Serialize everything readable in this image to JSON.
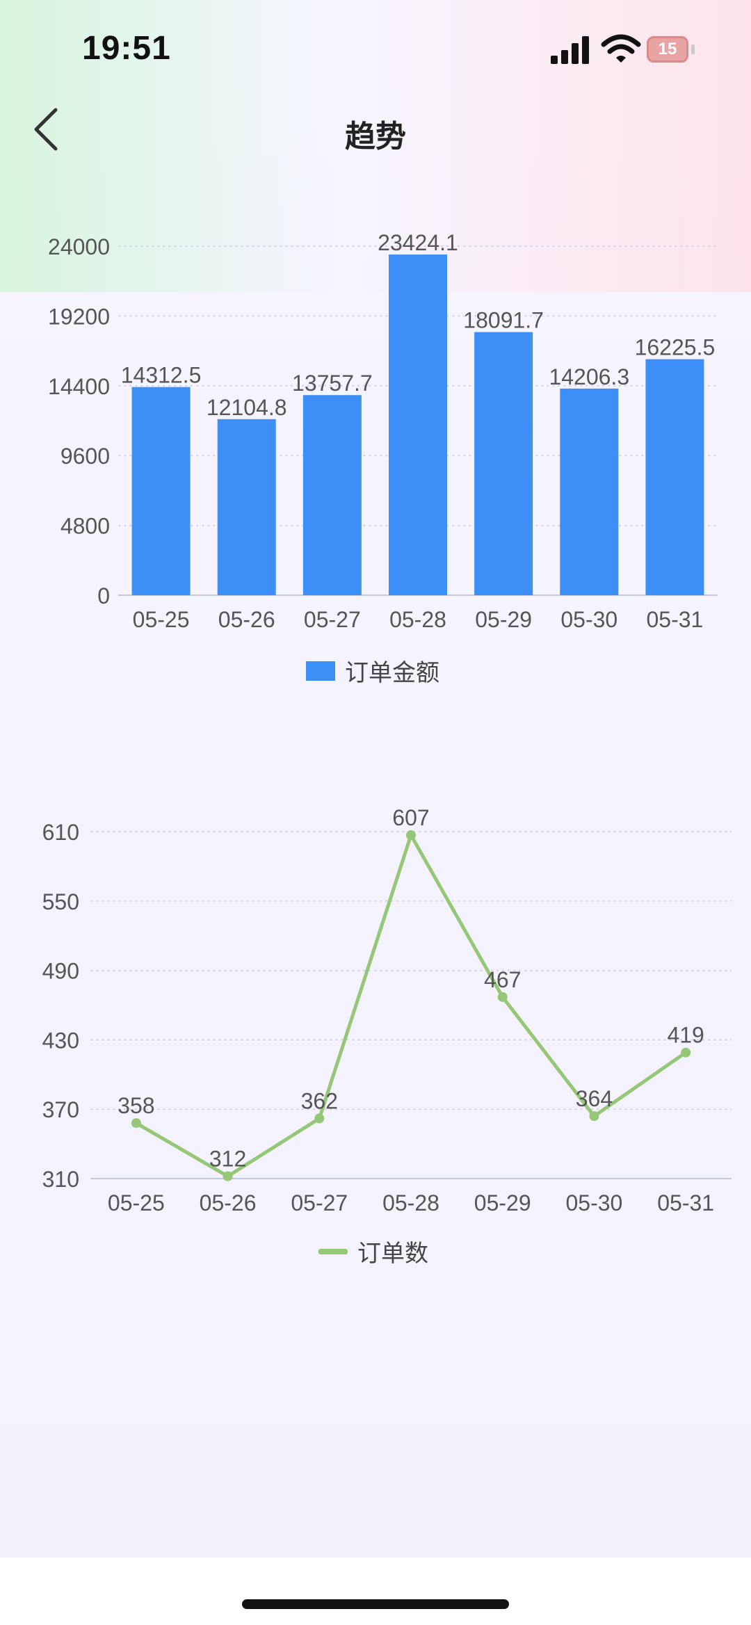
{
  "status_bar": {
    "time": "19:51",
    "battery": "15",
    "battery_color": "#e8a3a3"
  },
  "header": {
    "title": "趋势"
  },
  "icons": [
    "back-arrow-icon",
    "signal-icon",
    "wifi-icon",
    "battery-icon"
  ],
  "colors": {
    "bar": "#3d8ef6",
    "line": "#95c777",
    "grid": "#cfd4e6",
    "axis_text": "#555555",
    "label_text": "#555555"
  },
  "chart_data": [
    {
      "type": "bar",
      "categories": [
        "05-25",
        "05-26",
        "05-27",
        "05-28",
        "05-29",
        "05-30",
        "05-31"
      ],
      "series": [
        {
          "name": "订单金额",
          "values": [
            14312.5,
            12104.8,
            13757.7,
            23424.1,
            18091.7,
            14206.3,
            16225.5
          ]
        }
      ],
      "ylim": [
        0,
        24000
      ],
      "yticks": [
        0,
        4800,
        9600,
        14400,
        19200,
        24000
      ],
      "grid": true,
      "legend": "bottom-center",
      "data_labels": [
        "14312.5",
        "12104.8",
        "13757.7",
        "23424.1",
        "18091.7",
        "14206.3",
        "16225.5"
      ]
    },
    {
      "type": "line",
      "categories": [
        "05-25",
        "05-26",
        "05-27",
        "05-28",
        "05-29",
        "05-30",
        "05-31"
      ],
      "series": [
        {
          "name": "订单数",
          "values": [
            358,
            312,
            362,
            607,
            467,
            364,
            419
          ]
        }
      ],
      "ylim": [
        310,
        610
      ],
      "yticks": [
        310,
        370,
        430,
        490,
        550,
        610
      ],
      "grid": true,
      "legend": "bottom-center",
      "data_labels": [
        "358",
        "312",
        "362",
        "607",
        "467",
        "364",
        "419"
      ]
    }
  ]
}
